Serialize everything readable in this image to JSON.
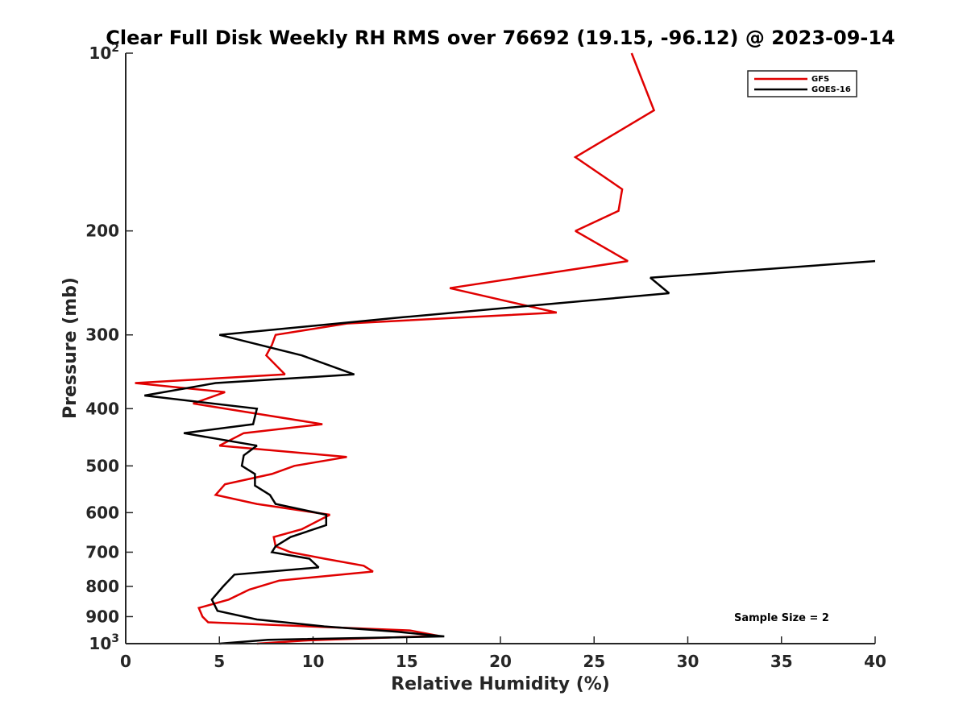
{
  "chart_data": {
    "type": "line",
    "title": "Clear Full Disk Weekly RH RMS over 76692 (19.15, -96.12) @ 2023-09-14",
    "xlabel": "Relative Humidity (%)",
    "ylabel": "Pressure (mb)",
    "xlim": [
      0,
      40
    ],
    "ylim": [
      100,
      1000
    ],
    "yscale": "log",
    "yreverse": true,
    "x_ticks": [
      0,
      5,
      10,
      15,
      20,
      25,
      30,
      35,
      40
    ],
    "x_tick_labels": [
      "0",
      "5",
      "10",
      "15",
      "20",
      "25",
      "30",
      "35",
      "40"
    ],
    "y_ticks_plain": [
      {
        "value": 200,
        "label": "200"
      },
      {
        "value": 300,
        "label": "300"
      },
      {
        "value": 400,
        "label": "400"
      },
      {
        "value": 500,
        "label": "500"
      },
      {
        "value": 600,
        "label": "600"
      },
      {
        "value": 700,
        "label": "700"
      },
      {
        "value": 800,
        "label": "800"
      },
      {
        "value": 900,
        "label": "900"
      }
    ],
    "y_ticks_pow": [
      {
        "value": 100,
        "base": "10",
        "exp": "2"
      },
      {
        "value": 1000,
        "base": "10",
        "exp": "3"
      }
    ],
    "legend_position": "top-right",
    "annotation": "Sample Size = 2",
    "series": [
      {
        "name": "GFS",
        "color": "#e00000",
        "points": [
          [
            27.0,
            100
          ],
          [
            28.2,
            125
          ],
          [
            24.0,
            150
          ],
          [
            26.5,
            170
          ],
          [
            26.3,
            185
          ],
          [
            24.0,
            200
          ],
          [
            26.8,
            225
          ],
          [
            17.3,
            250
          ],
          [
            23.0,
            275
          ],
          [
            11.8,
            287
          ],
          [
            8.0,
            300
          ],
          [
            7.8,
            312
          ],
          [
            7.5,
            325
          ],
          [
            8.5,
            350
          ],
          [
            0.5,
            362
          ],
          [
            5.3,
            375
          ],
          [
            3.6,
            392
          ],
          [
            10.5,
            425
          ],
          [
            6.3,
            440
          ],
          [
            5.0,
            462
          ],
          [
            11.8,
            483
          ],
          [
            9.0,
            500
          ],
          [
            7.8,
            516
          ],
          [
            5.3,
            537
          ],
          [
            4.8,
            560
          ],
          [
            7.0,
            580
          ],
          [
            10.9,
            605
          ],
          [
            9.4,
            640
          ],
          [
            7.9,
            660
          ],
          [
            8.0,
            684
          ],
          [
            8.8,
            700
          ],
          [
            10.6,
            718
          ],
          [
            12.7,
            738
          ],
          [
            13.2,
            755
          ],
          [
            8.2,
            782
          ],
          [
            6.6,
            810
          ],
          [
            5.5,
            842
          ],
          [
            3.9,
            870
          ],
          [
            4.1,
            900
          ],
          [
            4.4,
            920
          ],
          [
            15.2,
            950
          ],
          [
            16.7,
            970
          ],
          [
            9.5,
            988
          ],
          [
            7.0,
            1000
          ]
        ]
      },
      {
        "name": "GOES-16",
        "color": "#000000",
        "points": [
          [
            40.0,
            225
          ],
          [
            28.0,
            240
          ],
          [
            29.0,
            255
          ],
          [
            14.8,
            280
          ],
          [
            5.0,
            300
          ],
          [
            9.4,
            325
          ],
          [
            12.2,
            350
          ],
          [
            4.8,
            362
          ],
          [
            1.0,
            380
          ],
          [
            7.0,
            400
          ],
          [
            6.8,
            425
          ],
          [
            3.1,
            440
          ],
          [
            7.0,
            462
          ],
          [
            6.3,
            480
          ],
          [
            6.2,
            500
          ],
          [
            6.9,
            516
          ],
          [
            6.9,
            540
          ],
          [
            7.7,
            560
          ],
          [
            8.0,
            580
          ],
          [
            10.7,
            605
          ],
          [
            10.7,
            630
          ],
          [
            8.8,
            660
          ],
          [
            8.0,
            684
          ],
          [
            7.8,
            700
          ],
          [
            9.8,
            718
          ],
          [
            10.3,
            743
          ],
          [
            5.8,
            764
          ],
          [
            5.2,
            800
          ],
          [
            4.6,
            842
          ],
          [
            4.9,
            880
          ],
          [
            7.0,
            910
          ],
          [
            10.6,
            935
          ],
          [
            14.5,
            955
          ],
          [
            17.0,
            972
          ],
          [
            7.6,
            985
          ],
          [
            5.0,
            1000
          ]
        ]
      }
    ]
  }
}
